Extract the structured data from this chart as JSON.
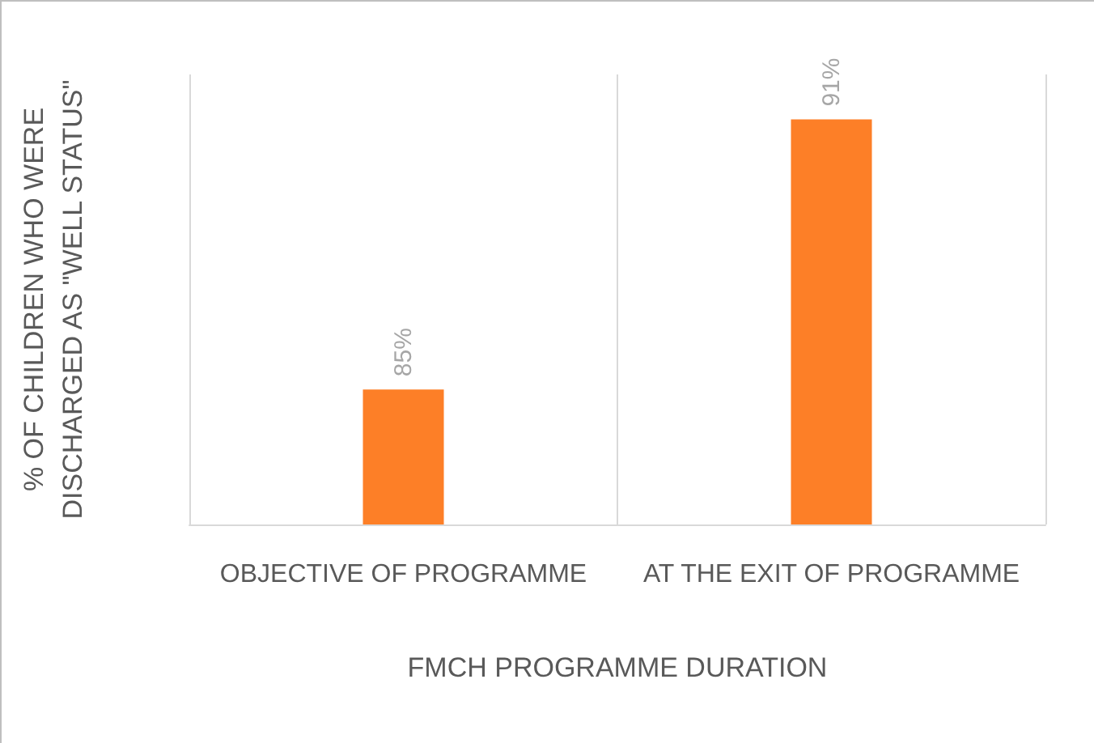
{
  "chart_data": {
    "type": "bar",
    "categories": [
      "OBJECTIVE OF PROGRAMME",
      "AT THE EXIT OF PROGRAMME"
    ],
    "values": [
      85,
      91
    ],
    "value_labels": [
      "85%",
      "91%"
    ],
    "color": "#fd7f27",
    "xlabel": "FMCH PROGRAMME DURATION",
    "ylabel": "% OF CHILDREN WHO WERE DISCHARGED AS \"WELL STATUS\"",
    "ylim": [
      82,
      92
    ],
    "tick_labels": "x",
    "grid": "x"
  }
}
